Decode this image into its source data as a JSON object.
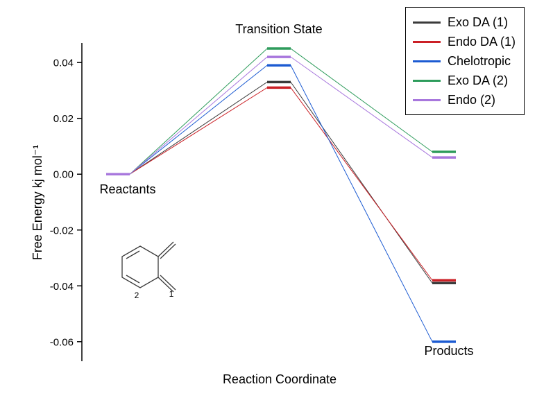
{
  "chart_data": {
    "type": "line",
    "variant": "energy-level-diagram",
    "title": "",
    "xlabel": "Reaction Coordinate",
    "ylabel": "Free Energy kj mol⁻¹",
    "categories": [
      "Reactants",
      "Transition State",
      "Products"
    ],
    "ylim": [
      -0.067,
      0.047
    ],
    "yticks": [
      -0.06,
      -0.04,
      -0.02,
      0.0,
      0.02,
      0.04
    ],
    "ytick_labels": [
      "-0.06",
      "-0.04",
      "-0.02",
      "0.00",
      "0.02",
      "0.04"
    ],
    "grid": false,
    "legend_position": "top-right",
    "series": [
      {
        "name": "Exo DA (1)",
        "color": "#3b3b3b",
        "values": [
          0.0,
          0.033,
          -0.039
        ]
      },
      {
        "name": "Endo DA (1)",
        "color": "#cb2026",
        "values": [
          0.0,
          0.031,
          -0.038
        ]
      },
      {
        "name": "Chelotropic",
        "color": "#1c5bd2",
        "values": [
          0.0,
          0.039,
          -0.06
        ]
      },
      {
        "name": "Exo DA (2)",
        "color": "#2e9c5c",
        "values": [
          0.0,
          0.045,
          0.008
        ]
      },
      {
        "name": "Endo (2)",
        "color": "#a877dd",
        "values": [
          0.0,
          0.042,
          0.006
        ]
      }
    ]
  },
  "molecule": {
    "label_1": "1",
    "label_2": "2"
  }
}
